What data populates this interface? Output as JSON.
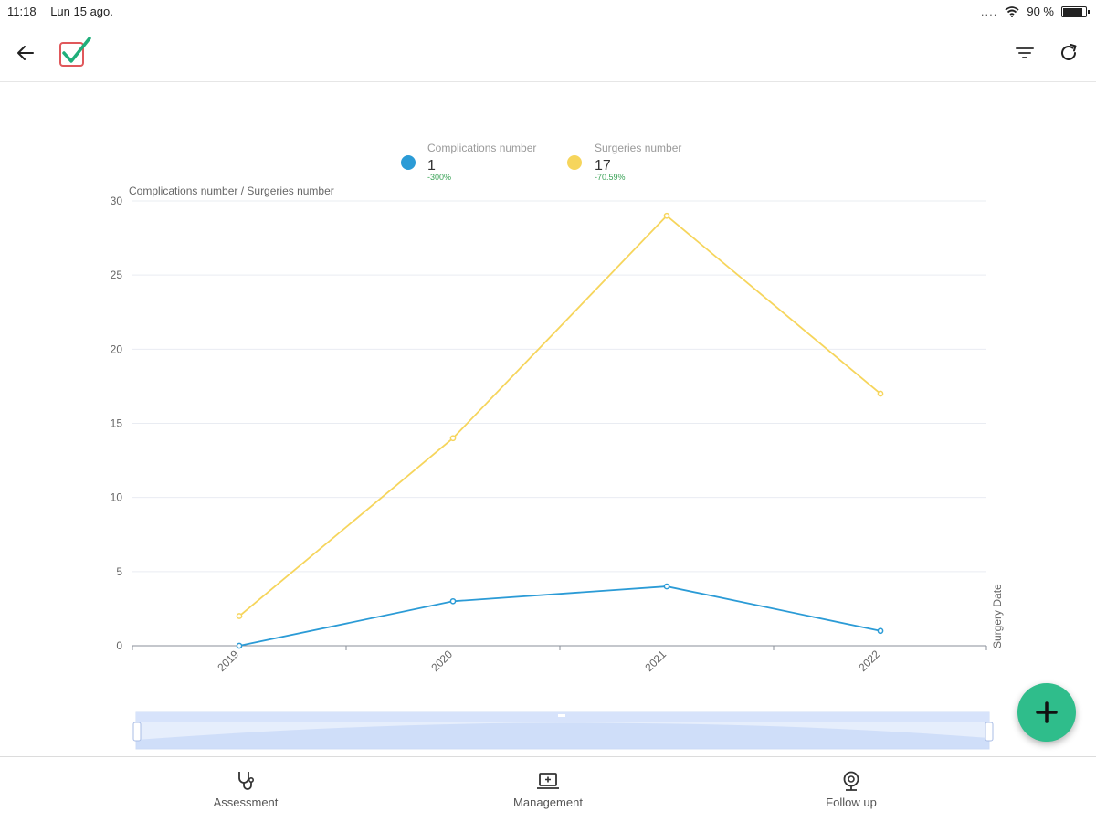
{
  "status_bar": {
    "time": "11:18",
    "date": "Lun 15 ago.",
    "signal": "....",
    "battery_text": "90 %",
    "battery_level": 0.9
  },
  "app_bar": {
    "back_icon": "arrow-left-icon",
    "logo_icon": "checkbox-logo-icon",
    "filter_icon": "filter-icon",
    "refresh_icon": "refresh-icon"
  },
  "legend": {
    "complications": {
      "label": "Complications number",
      "value": "1",
      "change": "-300%",
      "color": "#2b9bd6"
    },
    "surgeries": {
      "label": "Surgeries number",
      "value": "17",
      "change": "-70.59%",
      "color": "#f6d55c"
    }
  },
  "chart_data": {
    "type": "line",
    "ylabel": "Complications number / Surgeries number",
    "xlabel": "Surgery Date",
    "categories": [
      "2019",
      "2020",
      "2021",
      "2022"
    ],
    "ylim": [
      0,
      30
    ],
    "yticks": [
      "0",
      "5",
      "10",
      "15",
      "20",
      "25",
      "30"
    ],
    "series": [
      {
        "name": "Complications number",
        "values": [
          0,
          3,
          4,
          1
        ],
        "color": "#2b9bd6"
      },
      {
        "name": "Surgeries number",
        "values": [
          2,
          14,
          29,
          17
        ],
        "color": "#f6d55c"
      }
    ],
    "grid": true,
    "legend_position": "top-center"
  },
  "bottom_nav": {
    "items": [
      {
        "label": "Assessment",
        "icon": "stethoscope-icon"
      },
      {
        "label": "Management",
        "icon": "laptop-plus-icon"
      },
      {
        "label": "Follow up",
        "icon": "webcam-icon"
      }
    ]
  },
  "fab": {
    "icon": "plus-icon",
    "color": "#2fbd8b"
  }
}
